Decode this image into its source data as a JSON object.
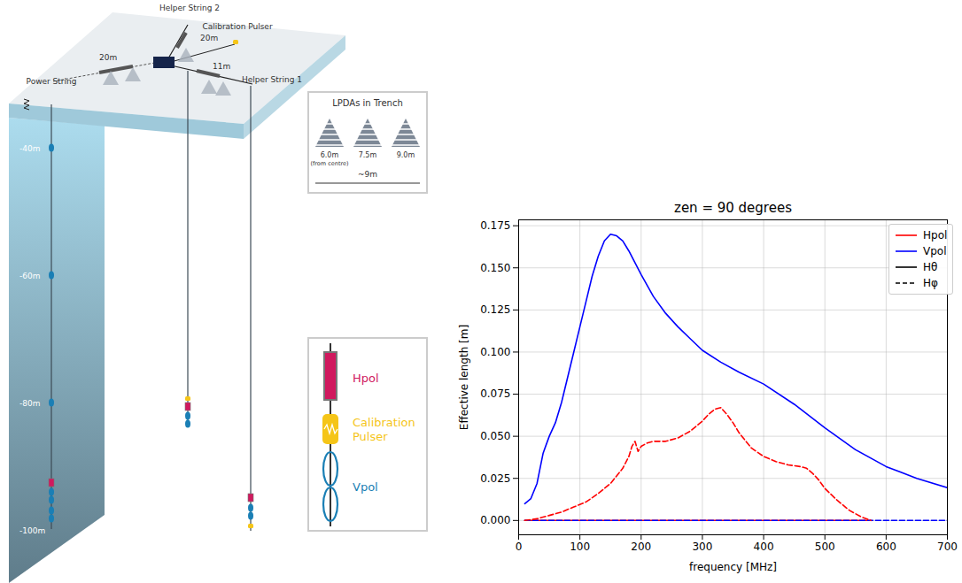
{
  "diagram": {
    "strings": [
      {
        "label": "Power String",
        "depth_labels": [
          {
            "label": "-40m",
            "value": -40
          },
          {
            "label": "-60m",
            "value": -60
          },
          {
            "label": "-80m",
            "value": -80
          },
          {
            "label": "-100m",
            "value": -100
          }
        ]
      },
      {
        "label": "Helper String 2"
      },
      {
        "label": "Helper String 1"
      }
    ],
    "calibration_pulser_label": "Calibration Pulser",
    "distances": [
      "20m",
      "20m",
      "11m"
    ],
    "lpda_legend": {
      "title": "LPDAs in Trench",
      "items": [
        {
          "label": "6.0m",
          "note": "(from centre)"
        },
        {
          "label": "7.5m"
        },
        {
          "label": "9.0m"
        }
      ],
      "span": "~9m"
    },
    "component_legend": [
      {
        "label": "Hpol",
        "color": "#d0195e"
      },
      {
        "label": "Calibration Pulser",
        "color": "#f5c518"
      },
      {
        "label": "Vpol",
        "color": "#1a7fb5"
      }
    ]
  },
  "chart_data": {
    "type": "line",
    "title": "zen = 90 degrees",
    "x_label": "frequency [MHz]",
    "y_label": "Effective length [m]",
    "xlim": [
      0,
      700
    ],
    "xticks": [
      0,
      100,
      200,
      300,
      400,
      500,
      600,
      700
    ],
    "ylim": [
      -0.0085,
      0.1785
    ],
    "yticks": [
      {
        "value": 0,
        "label": "0.000"
      },
      {
        "value": 0.025,
        "label": "0.025"
      },
      {
        "value": 0.05,
        "label": "0.050"
      },
      {
        "value": 0.075,
        "label": "0.075"
      },
      {
        "value": 0.1,
        "label": "0.100"
      },
      {
        "value": 0.125,
        "label": "0.125"
      },
      {
        "value": 0.15,
        "label": "0.150"
      },
      {
        "value": 0.175,
        "label": "0.175"
      }
    ],
    "grid": true,
    "legend": "upper right",
    "legend_items": [
      {
        "label": "Hpol",
        "color": "#ff0000",
        "line_style": "solid"
      },
      {
        "label": "Vpol",
        "color": "#0000ff",
        "line_style": "solid"
      },
      {
        "label": "Hθ",
        "color": "#000000",
        "line_style": "solid"
      },
      {
        "label": "Hφ",
        "color": "#000000",
        "line_style": "dashed"
      }
    ],
    "series": [
      {
        "antenna": "Hpol",
        "component": "Hθ",
        "color": "#ff0000",
        "line_style": "solid",
        "x": [
          10,
          575
        ],
        "values": [
          0,
          0
        ]
      },
      {
        "antenna": "Vpol",
        "component": "Hφ",
        "color": "#0000ff",
        "line_style": "dashed",
        "x": [
          10,
          700
        ],
        "values": [
          0,
          0
        ]
      },
      {
        "antenna": "Vpol",
        "component": "Hθ",
        "color": "#0000ff",
        "line_style": "solid",
        "x": [
          10,
          20,
          30,
          40,
          50,
          60,
          70,
          80,
          90,
          100,
          110,
          120,
          130,
          140,
          150,
          160,
          170,
          180,
          200,
          220,
          240,
          260,
          280,
          300,
          330,
          360,
          400,
          450,
          500,
          550,
          600,
          650,
          700
        ],
        "values": [
          0.01,
          0.013,
          0.022,
          0.04,
          0.05,
          0.058,
          0.07,
          0.085,
          0.1,
          0.115,
          0.13,
          0.145,
          0.157,
          0.166,
          0.17,
          0.169,
          0.166,
          0.16,
          0.146,
          0.133,
          0.123,
          0.115,
          0.108,
          0.101,
          0.094,
          0.088,
          0.081,
          0.069,
          0.055,
          0.042,
          0.032,
          0.025,
          0.0195
        ]
      },
      {
        "antenna": "Hpol",
        "component": "Hφ",
        "color": "#ff0000",
        "line_style": "dashed",
        "x": [
          10,
          30,
          50,
          70,
          90,
          110,
          130,
          150,
          170,
          180,
          185,
          190,
          195,
          200,
          210,
          220,
          240,
          260,
          280,
          300,
          310,
          320,
          330,
          340,
          350,
          360,
          380,
          400,
          420,
          440,
          460,
          470,
          480,
          490,
          500,
          520,
          540,
          560,
          575
        ],
        "values": [
          0,
          0.001,
          0.003,
          0.005,
          0.008,
          0.011,
          0.016,
          0.022,
          0.031,
          0.038,
          0.044,
          0.047,
          0.041,
          0.044,
          0.046,
          0.047,
          0.047,
          0.049,
          0.053,
          0.059,
          0.063,
          0.066,
          0.067,
          0.063,
          0.058,
          0.052,
          0.043,
          0.038,
          0.035,
          0.033,
          0.032,
          0.031,
          0.028,
          0.024,
          0.019,
          0.012,
          0.006,
          0.002,
          0
        ]
      }
    ]
  }
}
